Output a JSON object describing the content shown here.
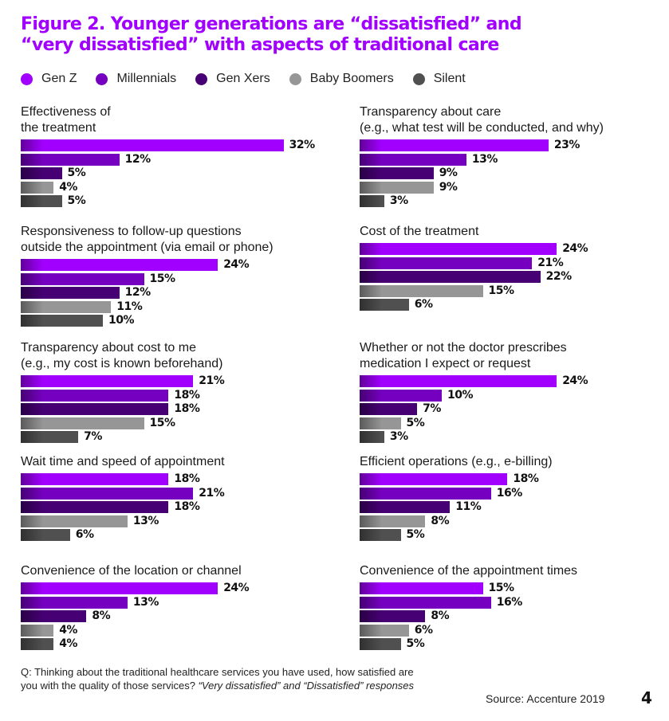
{
  "chart_data": {
    "type": "bar",
    "orientation": "horizontal",
    "title": "Figure 2. Younger generations are “dissatisfied” and “very dissatisfied” with aspects of traditional care",
    "xlabel": "",
    "ylabel": "",
    "xlim": [
      0,
      35
    ],
    "grid": false,
    "legend_position": "top",
    "series": [
      {
        "name": "Gen Z",
        "color": "#A100FF"
      },
      {
        "name": "Millennials",
        "color": "#7500C0"
      },
      {
        "name": "Gen Xers",
        "color": "#460073"
      },
      {
        "name": "Baby Boomers",
        "color": "#969696"
      },
      {
        "name": "Silent",
        "color": "#505050"
      }
    ],
    "panels": [
      {
        "label": "Effectiveness of\nthe treatment",
        "values": [
          32,
          12,
          5,
          4,
          5
        ],
        "labels": [
          "32%",
          "12%",
          "5%",
          "4%",
          "5%"
        ]
      },
      {
        "label": "Transparency about care\n(e.g., what test will be conducted, and why)",
        "values": [
          23,
          13,
          9,
          9,
          3
        ],
        "labels": [
          "23%",
          "13%",
          "9%",
          "9%",
          "3%"
        ]
      },
      {
        "label": "Responsiveness to follow-up questions\noutside the appointment (via email or phone)",
        "values": [
          24,
          15,
          12,
          11,
          10
        ],
        "labels": [
          "24%",
          "15%",
          "12%",
          "11%",
          "10%"
        ]
      },
      {
        "label": "Cost of the treatment",
        "values": [
          24,
          21,
          22,
          15,
          6
        ],
        "labels": [
          "24%",
          "21%",
          "22%",
          "15%",
          "6%"
        ]
      },
      {
        "label": "Transparency about cost to me\n(e.g., my cost is known beforehand)",
        "values": [
          21,
          18,
          18,
          15,
          7
        ],
        "labels": [
          "21%",
          "18%",
          "18%",
          "15%",
          "7%"
        ]
      },
      {
        "label": "Whether or not the doctor prescribes\nmedication I expect or request",
        "values": [
          24,
          10,
          7,
          5,
          3
        ],
        "labels": [
          "24%",
          "10%",
          "7%",
          "5%",
          "3%"
        ]
      },
      {
        "label": "Wait time and speed of appointment",
        "values": [
          18,
          21,
          18,
          13,
          6
        ],
        "labels": [
          "18%",
          "21%",
          "18%",
          "13%",
          "6%"
        ]
      },
      {
        "label": "Efficient operations (e.g., e-billing)",
        "values": [
          18,
          16,
          11,
          8,
          5
        ],
        "labels": [
          "18%",
          "16%",
          "11%",
          "8%",
          "5%"
        ]
      },
      {
        "label": "Convenience of the location or channel",
        "values": [
          24,
          13,
          8,
          4,
          4
        ],
        "labels": [
          "24%",
          "13%",
          "8%",
          "4%",
          "4%"
        ]
      },
      {
        "label": "Convenience of the appointment times",
        "values": [
          15,
          16,
          8,
          6,
          5
        ],
        "labels": [
          "15%",
          "16%",
          "8%",
          "6%",
          "5%"
        ]
      }
    ]
  },
  "footer": {
    "question": "Q: Thinking about the traditional healthcare services you have used, how satisfied are you with the quality of those services?",
    "question_italic": "“Very dissatisfied” and “Dissatisfied” responses",
    "source": "Source: Accenture 2019",
    "page_number": "4"
  }
}
